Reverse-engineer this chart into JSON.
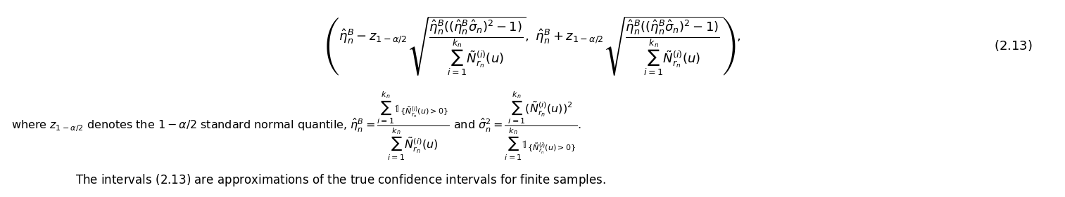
{
  "figsize": [
    15.13,
    2.81
  ],
  "dpi": 100,
  "background_color": "#ffffff",
  "equation_line1": "$\\left( \\hat{\\eta}_n^B - z_{1-\\alpha/2}\\sqrt{\\dfrac{\\hat{\\eta}_n^B((\\hat{\\eta}_n^B\\hat{\\sigma}_n)^2 - 1)}{\\sum_{i=1}^{k_n} \\tilde{N}_{r_n}^{(i)}(u)}},\\; \\hat{\\eta}_n^B + z_{1-\\alpha/2}\\sqrt{\\dfrac{\\hat{\\eta}_n^B((\\hat{\\eta}_n^B\\hat{\\sigma}_n)^2 - 1)}{\\sum_{i=1}^{k_n} \\tilde{N}_{r_n}^{(i)}(u)}} \\right),$",
  "label_213": "$(2.13)$",
  "equation_line2": "$\\text{where } z_{1-\\alpha/2} \\text{ denotes the } 1-\\alpha/2 \\text{ standard normal quantile, } \\hat{\\eta}_n^B = \\dfrac{\\sum_{i=1}^{k_n} \\mathbb{1}_{\\{\\tilde{N}_{r_n}^{(i)}(u)>0\\}}}{\\sum_{i=1}^{k_n} \\tilde{N}_{r_n}^{(i)}(u)} \\text{ and } \\hat{\\sigma}_n^2 = \\dfrac{\\sum_{i=1}^{k_n}(\\tilde{N}_{r_n}^{(i)}(u))^2}{\\sum_{i=1}^{k_n} \\mathbb{1}_{\\{\\tilde{N}_{r_n}^{(i)}(u)>0\\}}}.$",
  "line3": "$\\text{The intervals (2.13) are approximations of the true confidence intervals for finite samples.}$",
  "text_color": "#000000",
  "fontsize_eq": 13,
  "fontsize_label": 13,
  "fontsize_line3": 13
}
